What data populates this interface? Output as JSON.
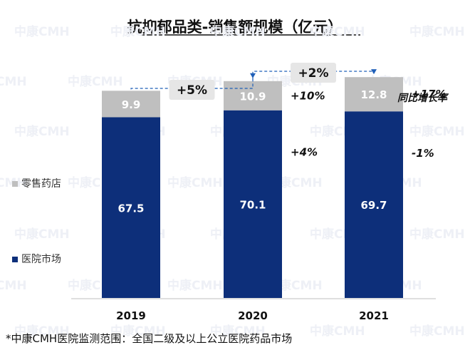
{
  "chart_data": {
    "type": "bar",
    "stacked": true,
    "title": "抗抑郁品类-销售额规模（亿元）",
    "categories": [
      "2019",
      "2020",
      "2021"
    ],
    "series": [
      {
        "name": "医院市场",
        "values": [
          67.5,
          70.1,
          69.7
        ],
        "value_labels": [
          "67.5",
          "70.1",
          "69.7"
        ],
        "color": "#0d2f7a"
      },
      {
        "name": "零售药店",
        "values": [
          9.9,
          10.9,
          12.8
        ],
        "value_labels": [
          "9.9",
          "10.9",
          "12.8"
        ],
        "color": "#bfbfbf"
      }
    ],
    "growth_label_header": "同比增长率",
    "growth_labels": {
      "零售药店": [
        "",
        "+10%",
        "+17%"
      ],
      "医院市场": [
        "",
        "+4%",
        "-1%"
      ]
    },
    "total_growth": [
      {
        "from": "2019",
        "to": "2020",
        "label": "+5%"
      },
      {
        "from": "2020",
        "to": "2021",
        "label": "+2%"
      }
    ],
    "legend": [
      "零售药店",
      "医院市场"
    ],
    "legend_position": "left",
    "footnote": "*中康CMH医院监测范围：全国二级及以上公立医院药品市场",
    "watermark": "中康CMH",
    "ylim": [
      0,
      90
    ]
  }
}
